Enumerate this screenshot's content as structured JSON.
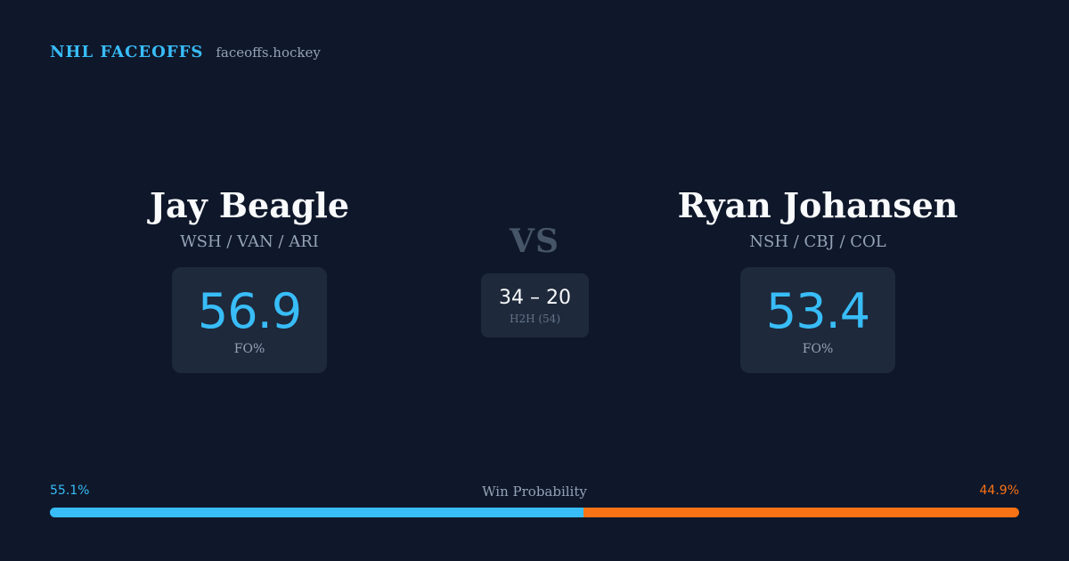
{
  "brand": {
    "name": "NHL FACEOFFS",
    "site": "faceoffs.hockey"
  },
  "player_left": {
    "name": "Jay Beagle",
    "teams": "WSH / VAN / ARI",
    "fo_value": "56.9",
    "fo_label": "FO%"
  },
  "player_right": {
    "name": "Ryan Johansen",
    "teams": "NSH / CBJ / COL",
    "fo_value": "53.4",
    "fo_label": "FO%"
  },
  "matchup": {
    "vs_label": "VS",
    "h2h_score": "34 – 20",
    "h2h_label": "H2H (54)"
  },
  "win_probability": {
    "title": "Win Probability",
    "left_pct_text": "55.1%",
    "right_pct_text": "44.9%",
    "left_fraction": 0.551,
    "colors": {
      "left": "#38bdf8",
      "right": "#f97316"
    }
  }
}
